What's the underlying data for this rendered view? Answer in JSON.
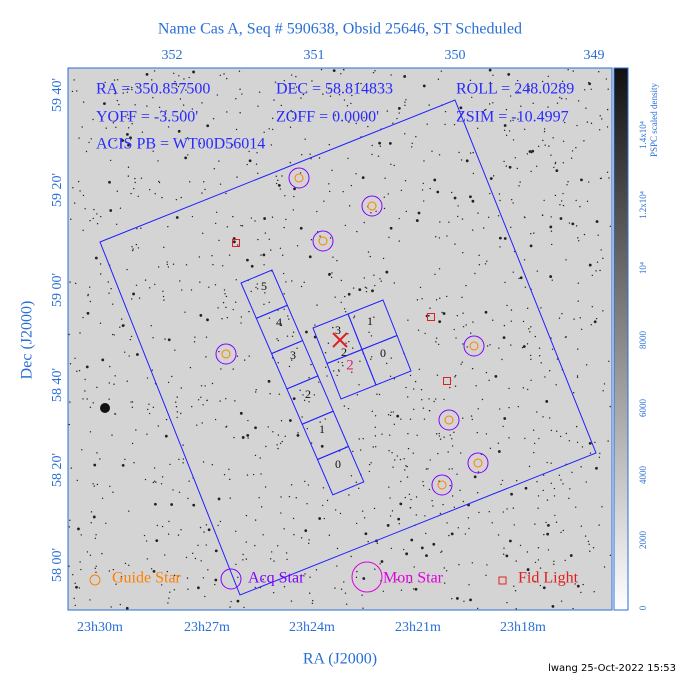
{
  "title": "Name Cas A, Seq # 590638, Obsid 25646, ST Scheduled",
  "info": {
    "ra": "RA = 350.857500",
    "dec": "DEC = 58.814833",
    "roll": "ROLL = 248.0289",
    "yoff": "YOFF = -3.500'",
    "zoff": "ZOFF = 0.0000'",
    "zsim": "ZSIM = -10.4997",
    "acis": "ACIS PB = WT00D56014"
  },
  "axes": {
    "top_ticks": [
      "352",
      "351",
      "350",
      "349"
    ],
    "bottom_ticks": [
      "23h30m",
      "23h27m",
      "23h24m",
      "23h21m",
      "23h18m"
    ],
    "y_ticks": [
      "59 40'",
      "59 20'",
      "59 00'",
      "58 40'",
      "58 20'",
      "58 00'"
    ],
    "x_label": "RA (J2000)",
    "y_label": "Dec (J2000)"
  },
  "colorbar": {
    "label": "PSPC scaled density",
    "ticks": [
      "0",
      "2000",
      "4000",
      "6000",
      "8000",
      "10⁴",
      "1.2x10⁴",
      "1.4x10⁴"
    ]
  },
  "chips": {
    "s": [
      "5",
      "4",
      "3",
      "2",
      "1",
      "0"
    ],
    "i": [
      "3",
      "1",
      "2",
      "0"
    ],
    "aim": "2"
  },
  "legend": [
    "Guide Star",
    "Acq Star",
    "Mon Star",
    "Fid Light"
  ],
  "footer": "lwang 25-Oct-2022 15:53"
}
